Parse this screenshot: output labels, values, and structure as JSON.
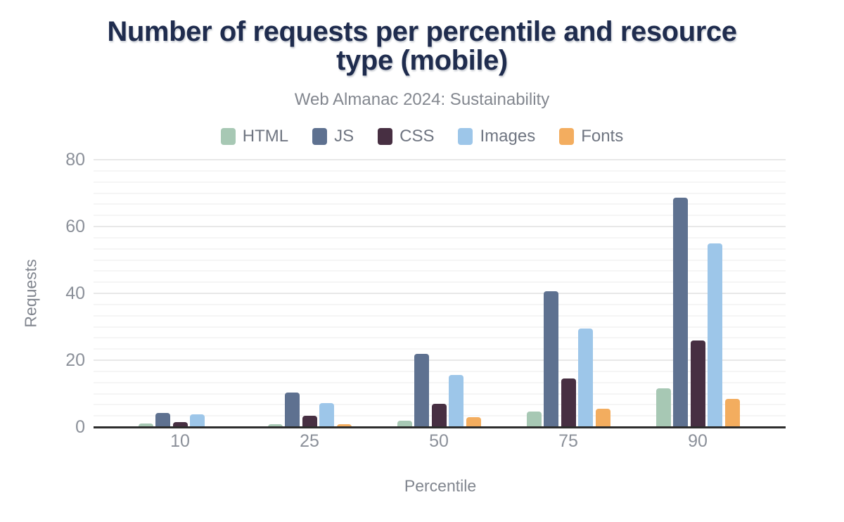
{
  "figure": {
    "title_line1": "Number of requests per percentile and resource",
    "title_line2": "type (mobile)",
    "subtitle": "Web Almanac 2024: Sustainability"
  },
  "chart_data": {
    "type": "bar",
    "title": "Number of requests per percentile and resource type (mobile)",
    "subtitle": "Web Almanac 2024: Sustainability",
    "xlabel": "Percentile",
    "ylabel": "Requests",
    "categories": [
      "10",
      "25",
      "50",
      "75",
      "90"
    ],
    "series": [
      {
        "name": "HTML",
        "color": "#a7c8b4",
        "values": [
          1,
          0.9,
          1.8,
          4.6,
          11.6
        ]
      },
      {
        "name": "JS",
        "color": "#5e7190",
        "values": [
          4.2,
          10.3,
          21.8,
          40.6,
          68.6
        ]
      },
      {
        "name": "CSS",
        "color": "#472f42",
        "values": [
          1.4,
          3.4,
          7,
          14.6,
          26
        ]
      },
      {
        "name": "Images",
        "color": "#9dc6e9",
        "values": [
          3.8,
          7.1,
          15.5,
          29.4,
          55
        ]
      },
      {
        "name": "Fonts",
        "color": "#f3ad5f",
        "values": [
          0,
          0.9,
          3,
          5.4,
          8.4
        ]
      }
    ],
    "y_ticks": [
      0,
      20,
      40,
      60,
      80
    ],
    "ylim": [
      0,
      80
    ],
    "grid": "horizontal, minor lines every 3.33 units, major every 20",
    "legend_position": "top"
  },
  "colors": {
    "background": "#ffffff",
    "title": "#1f2c4e",
    "subtitle": "#83878f",
    "legend_label": "#6f7581",
    "tick_label": "#8b9099",
    "axis_title": "#80858e",
    "axis_line": "#2d2d2d",
    "gridline_minor": "#f5f5f5",
    "gridline_major": "#e8e8e8"
  }
}
